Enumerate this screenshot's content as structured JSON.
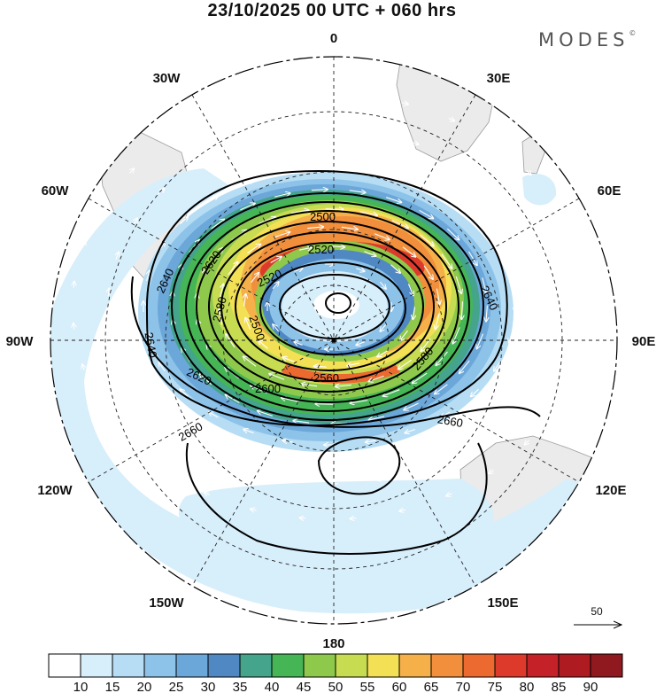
{
  "header": {
    "title": "23/10/2025  00 UTC  + 060 hrs",
    "brand": "MODES",
    "brand_mark": "©"
  },
  "map": {
    "projection": "south-polar-stereographic",
    "longitude_labels": {
      "lon_0": "0",
      "lon_30e": "30E",
      "lon_60e": "60E",
      "lon_90e": "90E",
      "lon_120e": "120E",
      "lon_150e": "150E",
      "lon_180": "180",
      "lon_150w": "150W",
      "lon_120w": "120W",
      "lon_90w": "90W",
      "lon_60w": "60W",
      "lon_30w": "30W"
    },
    "contour_labels": {
      "c2500a": "2500",
      "c2500b": "2500",
      "c2520a": "2520",
      "c2520b": "2520",
      "c2560": "2560",
      "c2580a": "2580",
      "c2580b": "2580",
      "c2600a": "2600",
      "c2600b": "2600",
      "c2620a": "2620",
      "c2620b": "2620",
      "c2640a": "2640",
      "c2640b": "2640",
      "c2640c": "2640",
      "c2660a": "2660",
      "c2660b": "2660"
    },
    "reference_vector": "50"
  },
  "colorbar": {
    "ticks": [
      "10",
      "15",
      "20",
      "25",
      "30",
      "35",
      "40",
      "45",
      "50",
      "55",
      "60",
      "65",
      "70",
      "75",
      "80",
      "85",
      "90"
    ],
    "colors": [
      "#ffffff",
      "#d7eefb",
      "#b6ddf4",
      "#8ec3e9",
      "#6ca7da",
      "#4f88c3",
      "#44a48c",
      "#46b556",
      "#8fc94c",
      "#c8dc52",
      "#f4e055",
      "#f5b04a",
      "#f28f3c",
      "#ec6a30",
      "#dd3a2b",
      "#c42128",
      "#ae1c22",
      "#901920"
    ]
  }
}
